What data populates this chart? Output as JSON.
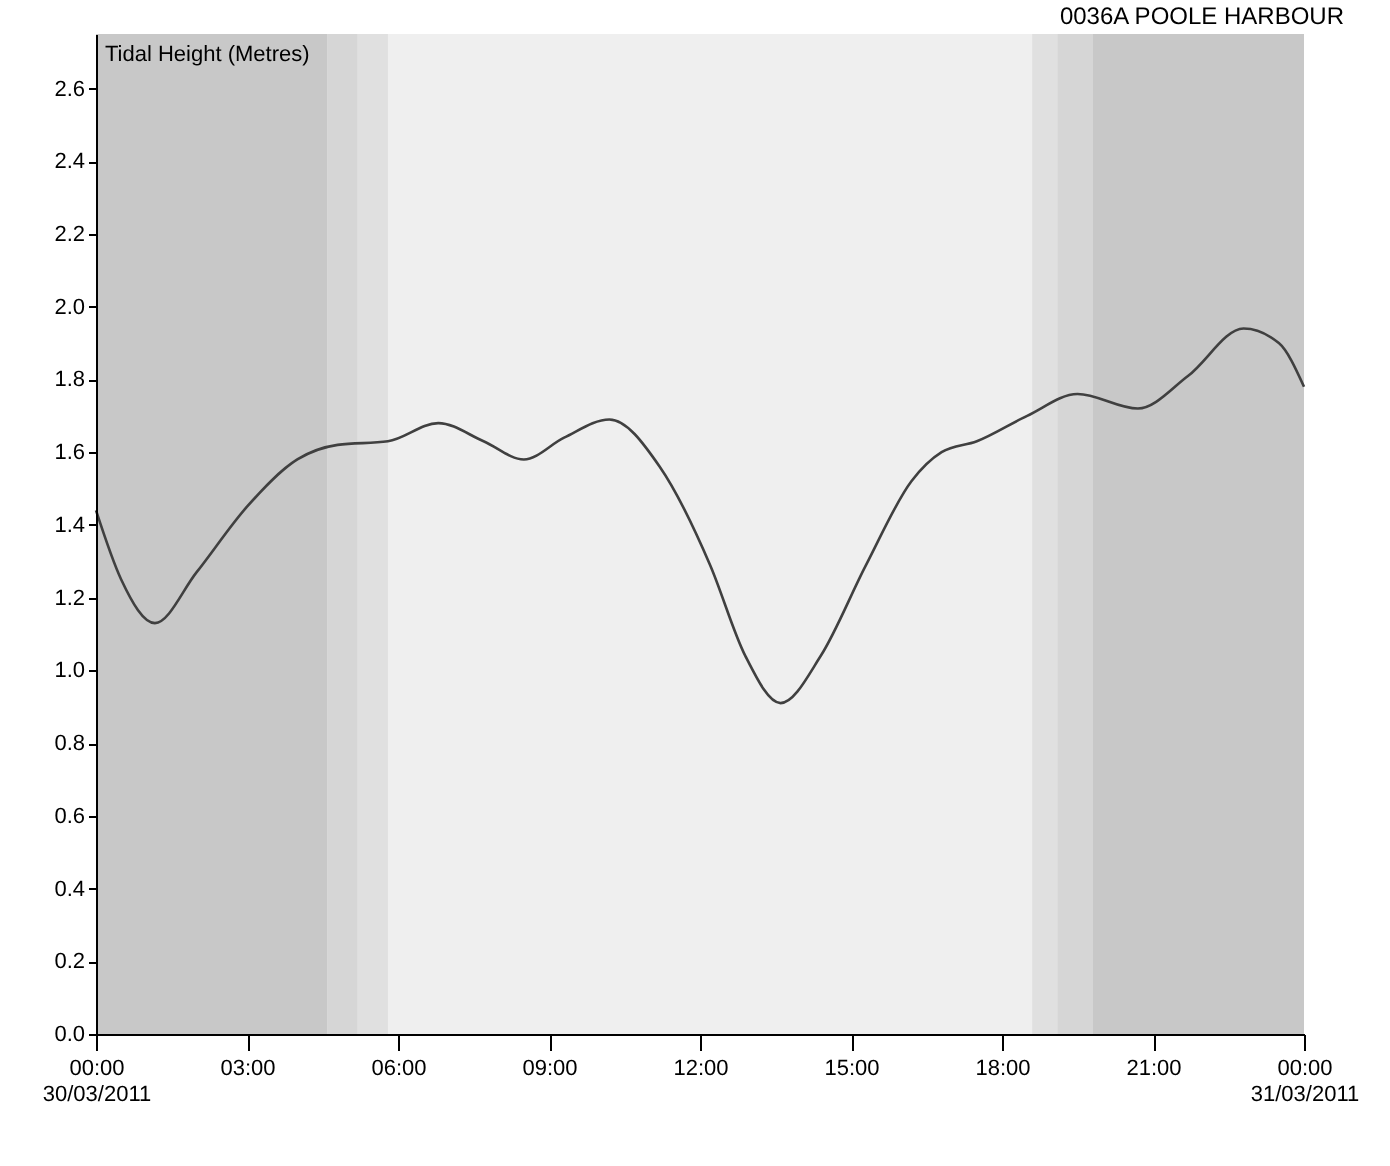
{
  "chart_data": {
    "type": "line",
    "title": "0036A POOLE HARBOUR",
    "ylabel": "Tidal Height (Metres)",
    "x": [
      0,
      0.5,
      1.17,
      2,
      3,
      4,
      4.8,
      5.8,
      6.8,
      7.7,
      8.5,
      9.3,
      10.2,
      11.2,
      12.2,
      12.9,
      13.6,
      14.4,
      15.3,
      16.2,
      16.8,
      17.5,
      18.5,
      19.5,
      20.7,
      21.7,
      22.8,
      23.5,
      24
    ],
    "series": [
      {
        "color": "#404040",
        "values": [
          1.44,
          1.25,
          1.13,
          1.27,
          1.45,
          1.58,
          1.62,
          1.63,
          1.68,
          1.63,
          1.58,
          1.64,
          1.69,
          1.56,
          1.29,
          1.04,
          0.91,
          1.04,
          1.29,
          1.52,
          1.6,
          1.63,
          1.7,
          1.76,
          1.72,
          1.81,
          1.94,
          1.9,
          1.78
        ]
      }
    ],
    "xlim": [
      0,
      24
    ],
    "xticks": [
      {
        "value": 0,
        "label": "00:00\n30/03/2011"
      },
      {
        "value": 3,
        "label": "03:00"
      },
      {
        "value": 6,
        "label": "06:00"
      },
      {
        "value": 9,
        "label": "09:00"
      },
      {
        "value": 12,
        "label": "12:00"
      },
      {
        "value": 15,
        "label": "15:00"
      },
      {
        "value": 18,
        "label": "18:00"
      },
      {
        "value": 21,
        "label": "21:00"
      },
      {
        "value": 24,
        "label": "00:00\n31/03/2011"
      }
    ],
    "ylim": [
      0,
      2.75
    ],
    "yticks": [
      {
        "value": 0,
        "label": "0.0"
      },
      0.2,
      0.4,
      0.6,
      0.8,
      {
        "value": 1,
        "label": "1.0"
      },
      1.2,
      1.4,
      1.6,
      1.8,
      {
        "value": 2,
        "label": "2.0"
      },
      2.2,
      2.4,
      2.6
    ],
    "bands": [
      {
        "axis": "x",
        "from": 0,
        "to": 4.6,
        "color": "#c8c8c8"
      },
      {
        "axis": "x",
        "from": 4.6,
        "to": 5.2,
        "color": "#d6d6d6"
      },
      {
        "axis": "x",
        "from": 5.2,
        "to": 5.8,
        "color": "#e0e0e0"
      },
      {
        "axis": "x",
        "from": 18.6,
        "to": 19.1,
        "color": "#e0e0e0"
      },
      {
        "axis": "x",
        "from": 19.1,
        "to": 19.8,
        "color": "#d6d6d6"
      },
      {
        "axis": "x",
        "from": 19.8,
        "to": 24,
        "color": "#c8c8c8"
      }
    ],
    "grid": false,
    "line_style": "solid",
    "marker": "none"
  }
}
